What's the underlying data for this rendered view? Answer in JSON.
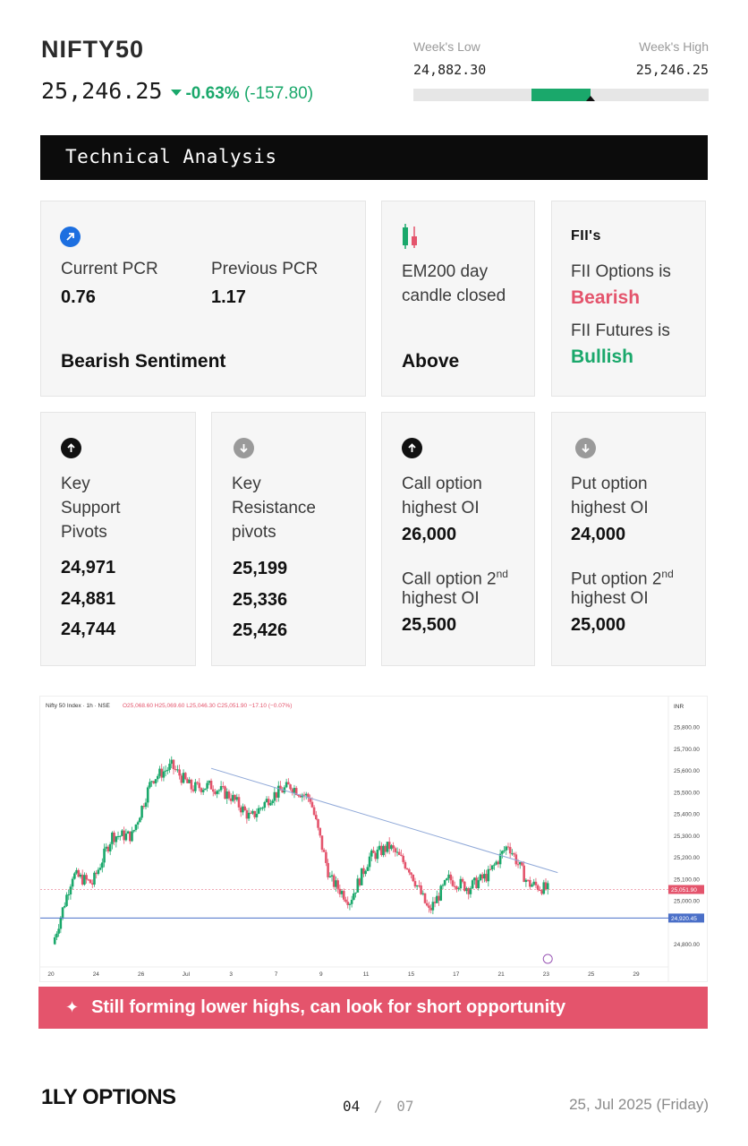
{
  "header": {
    "ticker": "NIFTY50",
    "price": "25,246.25",
    "change_pct": "-0.63%",
    "change_abs": "(-157.80)"
  },
  "week_range": {
    "low_label": "Week's Low",
    "high_label": "Week's High",
    "low_value": "24,882.30",
    "high_value": "25,246.25",
    "fill_start_fraction": 0.4,
    "fill_end_fraction": 0.6,
    "marker_fraction": 0.6
  },
  "section_title": "Technical Analysis",
  "pcr_card": {
    "current_label": "Current PCR",
    "current_value": "0.76",
    "previous_label": "Previous PCR",
    "previous_value": "1.17",
    "sentiment": "Bearish Sentiment"
  },
  "ema_card": {
    "label_line1": "EM200 day",
    "label_line2": "candle closed",
    "value": "Above"
  },
  "fii_card": {
    "title": "FII's",
    "options_label": "FII Options is",
    "options_value": "Bearish",
    "futures_label": "FII Futures is",
    "futures_value": "Bullish"
  },
  "support_card": {
    "l1": "Key",
    "l2": "Support",
    "l3": "Pivots",
    "values": [
      "24,971",
      "24,881",
      "24,744"
    ]
  },
  "resistance_card": {
    "l1": "Key",
    "l2": "Resistance",
    "l3": "pivots",
    "values": [
      "25,199",
      "25,336",
      "25,426"
    ]
  },
  "call_card": {
    "l1": "Call option",
    "l2": "highest OI",
    "v1": "26,000",
    "l3a": "Call option 2",
    "l3sup": "nd",
    "l4": "highest OI",
    "v2": "25,500"
  },
  "put_card": {
    "l1": "Put option",
    "l2": "highest OI",
    "v1": "24,000",
    "l3a": "Put option 2",
    "l3sup": "nd",
    "l4": "highest OI",
    "v2": "25,000"
  },
  "chart_data": {
    "type": "line",
    "title": "Nifty 50 Index · 1h · NSE",
    "ohlc": "O25,068.60 H25,069.60 L25,046.30 C25,051.90 −17.10 (−0.07%)",
    "currency": "INR",
    "x_labels": [
      "20",
      "24",
      "26",
      "Jul",
      "3",
      "7",
      "9",
      "11",
      "15",
      "17",
      "21",
      "23",
      "25",
      "29"
    ],
    "y_ticks": [
      "25,800.00",
      "25,700.00",
      "25,600.00",
      "25,500.00",
      "25,400.00",
      "25,300.00",
      "25,200.00",
      "25,100.00",
      "25,000.00",
      "24,800.00"
    ],
    "ylim": [
      24720,
      25850
    ],
    "current_price_label": "25,051.90",
    "support_line_label": "24,920.45",
    "support_line_value": 24920.45,
    "trendline": [
      [
        8,
        25610
      ],
      [
        25.5,
        25130
      ]
    ],
    "x": [
      0,
      1,
      2,
      3,
      4,
      5,
      6,
      7,
      8,
      9,
      10,
      11,
      12,
      13,
      14,
      15,
      16,
      17,
      18,
      19,
      20,
      21,
      22,
      23,
      24,
      25
    ],
    "close": [
      24800,
      25120,
      25080,
      25300,
      25300,
      25560,
      25620,
      25520,
      25530,
      25480,
      25380,
      25480,
      25530,
      25470,
      25100,
      25000,
      25200,
      25250,
      25150,
      24950,
      25100,
      25060,
      25120,
      25260,
      25080,
      25052
    ]
  },
  "banner": {
    "text": "Still forming lower highs, can look for short opportunity"
  },
  "footer": {
    "logo": "1LY OPTIONS",
    "page_current": "04",
    "page_sep": "/",
    "page_total": "07",
    "date": "25, Jul 2025 (Friday)"
  },
  "colors": {
    "green": "#1aa86b",
    "red": "#e4546c",
    "blue_icon": "#1d6fe0",
    "black": "#0c0c0c"
  }
}
